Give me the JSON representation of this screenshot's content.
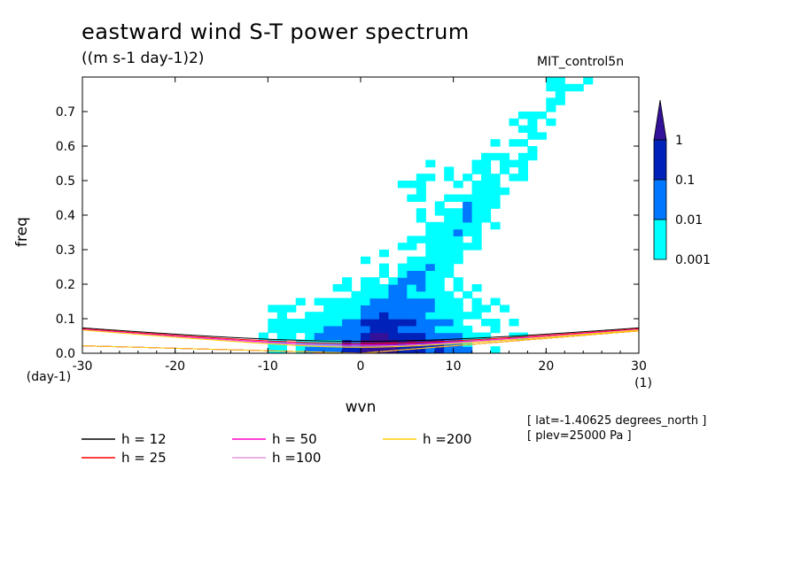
{
  "chart_data": {
    "type": "heatmap",
    "title": "eastward wind S-T power spectrum",
    "units": "((m s-1 day-1)2)",
    "run_label": "MIT_control5n",
    "xlabel": "wvn",
    "ylabel": "freq",
    "x_unit": "(1)",
    "y_unit": "(day-1)",
    "xlim": [
      -30,
      30
    ],
    "ylim": [
      0,
      0.8
    ],
    "x_ticks": [
      -30,
      -20,
      -10,
      0,
      10,
      20,
      30
    ],
    "y_ticks": [
      0.0,
      0.1,
      0.2,
      0.3,
      0.4,
      0.5,
      0.6,
      0.7
    ],
    "x_tick_labels": [
      "-30",
      "-20",
      "-10",
      "0",
      "10",
      "20",
      "30"
    ],
    "y_tick_labels": [
      "0.0",
      "0.1",
      "0.2",
      "0.3",
      "0.4",
      "0.5",
      "0.6",
      "0.7"
    ],
    "colorbar": {
      "levels": [
        0.001,
        0.01,
        0.1,
        1
      ],
      "labels": [
        "0.001",
        "0.01",
        "0.1",
        "1"
      ],
      "colors": [
        "#00ffff",
        "#0077ff",
        "#0022bb",
        "#331199"
      ]
    },
    "dispersion_curves": [
      {
        "label": "h = 12",
        "h": 12,
        "color": "#000000"
      },
      {
        "label": "h = 25",
        "h": 25,
        "color": "#ff0000"
      },
      {
        "label": "h = 50",
        "h": 50,
        "color": "#ff00cc"
      },
      {
        "label": "h =100",
        "h": 100,
        "color": "#dd99dd"
      },
      {
        "label": "h =200",
        "h": 200,
        "color": "#ffcc00"
      }
    ],
    "meta_lat": "[ lat=-1.40625 degrees_north ]",
    "meta_plev": "[ plev=25000 Pa ]"
  }
}
